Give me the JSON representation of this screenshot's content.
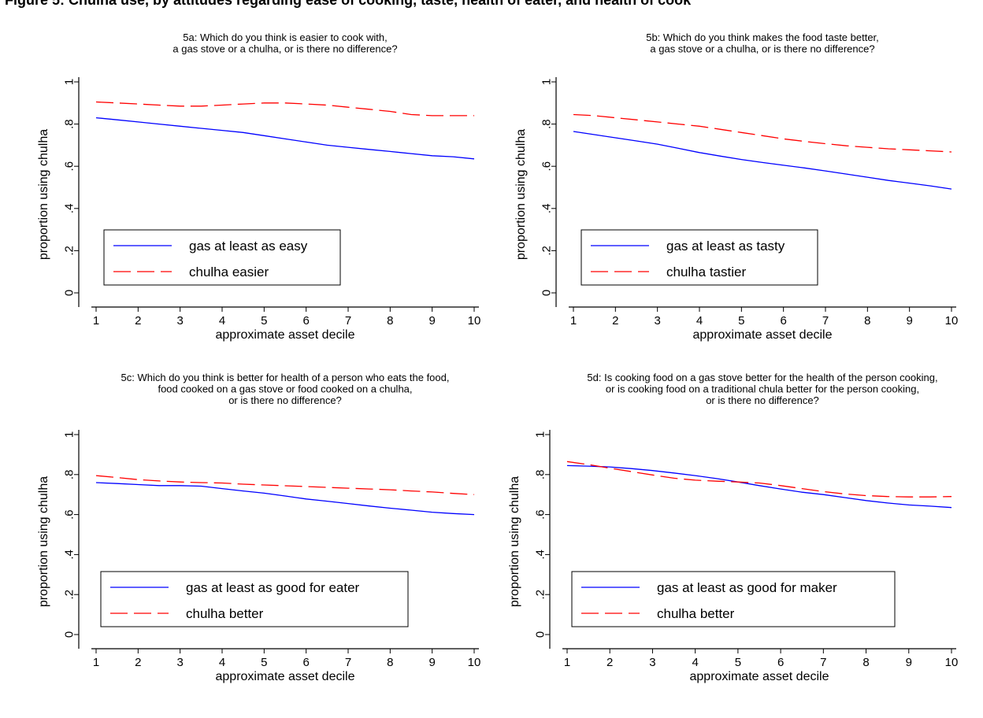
{
  "figure": {
    "caption": "Figure 5: Chulha use, by attitudes regarding ease of cooking, taste, health of eater, and health of cook"
  },
  "chart_data": [
    {
      "id": "5a",
      "type": "line",
      "title_lines": [
        "5a: Which do you think is easier to cook with,",
        "a gas stove or a chulha, or is there no difference?"
      ],
      "xlabel": "approximate asset decile",
      "ylabel": "proportion using chulha",
      "xlim": [
        1,
        10
      ],
      "ylim": [
        0,
        1
      ],
      "xticks": [
        1,
        2,
        3,
        4,
        5,
        6,
        7,
        8,
        9,
        10
      ],
      "yticks": [
        0,
        0.2,
        0.4,
        0.6,
        0.8,
        1
      ],
      "ytick_labels": [
        "0",
        ".2",
        ".4",
        ".6",
        ".8",
        "1"
      ],
      "grid": false,
      "legend_position": "bottom-left",
      "series": [
        {
          "name": "gas at least as easy",
          "color": "#0000ff",
          "dash": "solid",
          "x": [
            1,
            1.5,
            2,
            2.5,
            3,
            3.5,
            4,
            4.5,
            5,
            5.5,
            6,
            6.5,
            7,
            7.5,
            8,
            8.5,
            9,
            9.5,
            10
          ],
          "y": [
            0.83,
            0.82,
            0.81,
            0.8,
            0.79,
            0.78,
            0.77,
            0.76,
            0.745,
            0.73,
            0.715,
            0.7,
            0.69,
            0.68,
            0.67,
            0.66,
            0.65,
            0.645,
            0.635
          ]
        },
        {
          "name": "chulha easier",
          "color": "#ff0000",
          "dash": "dashed",
          "x": [
            1,
            1.5,
            2,
            2.5,
            3,
            3.5,
            4,
            4.5,
            5,
            5.5,
            6,
            6.5,
            7,
            7.5,
            8,
            8.5,
            9,
            9.5,
            10
          ],
          "y": [
            0.905,
            0.9,
            0.895,
            0.89,
            0.885,
            0.885,
            0.89,
            0.895,
            0.9,
            0.9,
            0.895,
            0.89,
            0.88,
            0.87,
            0.86,
            0.845,
            0.84,
            0.84,
            0.84
          ]
        }
      ]
    },
    {
      "id": "5b",
      "type": "line",
      "title_lines": [
        "5b: Which do you think makes the food taste better,",
        "a gas stove or a chulha, or is there no difference?"
      ],
      "xlabel": "approximate asset decile",
      "ylabel": "proportion using chulha",
      "xlim": [
        1,
        10
      ],
      "ylim": [
        0,
        1
      ],
      "xticks": [
        1,
        2,
        3,
        4,
        5,
        6,
        7,
        8,
        9,
        10
      ],
      "yticks": [
        0,
        0.2,
        0.4,
        0.6,
        0.8,
        1
      ],
      "ytick_labels": [
        "0",
        ".2",
        ".4",
        ".6",
        ".8",
        "1"
      ],
      "grid": false,
      "legend_position": "bottom-left",
      "series": [
        {
          "name": "gas at least as tasty",
          "color": "#0000ff",
          "dash": "solid",
          "x": [
            1,
            1.5,
            2,
            2.5,
            3,
            3.5,
            4,
            4.5,
            5,
            5.5,
            6,
            6.5,
            7,
            7.5,
            8,
            8.5,
            9,
            9.5,
            10
          ],
          "y": [
            0.765,
            0.75,
            0.735,
            0.72,
            0.705,
            0.685,
            0.665,
            0.648,
            0.632,
            0.618,
            0.605,
            0.592,
            0.578,
            0.563,
            0.548,
            0.533,
            0.52,
            0.507,
            0.492
          ]
        },
        {
          "name": "chulha tastier",
          "color": "#ff0000",
          "dash": "dashed",
          "x": [
            1,
            1.5,
            2,
            2.5,
            3,
            3.5,
            4,
            4.5,
            5,
            5.5,
            6,
            6.5,
            7,
            7.5,
            8,
            8.5,
            9,
            9.5,
            10
          ],
          "y": [
            0.845,
            0.84,
            0.83,
            0.82,
            0.81,
            0.8,
            0.79,
            0.775,
            0.76,
            0.745,
            0.73,
            0.718,
            0.707,
            0.697,
            0.69,
            0.683,
            0.678,
            0.673,
            0.668
          ]
        }
      ]
    },
    {
      "id": "5c",
      "type": "line",
      "title_lines": [
        "5c: Which do you think is better for health of a person who eats the food,",
        "food cooked on a gas stove or food cooked on a chulha,",
        "or is there no difference?"
      ],
      "xlabel": "approximate asset decile",
      "ylabel": "proportion using chulha",
      "xlim": [
        1,
        10
      ],
      "ylim": [
        0,
        1
      ],
      "xticks": [
        1,
        2,
        3,
        4,
        5,
        6,
        7,
        8,
        9,
        10
      ],
      "yticks": [
        0,
        0.2,
        0.4,
        0.6,
        0.8,
        1
      ],
      "ytick_labels": [
        "0",
        ".2",
        ".4",
        ".6",
        ".8",
        "1"
      ],
      "grid": false,
      "legend_position": "bottom-left",
      "series": [
        {
          "name": "gas at least as good for eater",
          "color": "#0000ff",
          "dash": "solid",
          "x": [
            1,
            1.5,
            2,
            2.5,
            3,
            3.5,
            4,
            4.5,
            5,
            5.5,
            6,
            6.5,
            7,
            7.5,
            8,
            8.5,
            9,
            9.5,
            10
          ],
          "y": [
            0.76,
            0.755,
            0.75,
            0.745,
            0.745,
            0.742,
            0.73,
            0.718,
            0.707,
            0.693,
            0.678,
            0.667,
            0.655,
            0.643,
            0.632,
            0.622,
            0.612,
            0.605,
            0.6
          ]
        },
        {
          "name": "chulha better",
          "color": "#ff0000",
          "dash": "dashed",
          "x": [
            1,
            1.5,
            2,
            2.5,
            3,
            3.5,
            4,
            4.5,
            5,
            5.5,
            6,
            6.5,
            7,
            7.5,
            8,
            8.5,
            9,
            9.5,
            10
          ],
          "y": [
            0.795,
            0.785,
            0.775,
            0.768,
            0.763,
            0.76,
            0.758,
            0.752,
            0.748,
            0.744,
            0.74,
            0.736,
            0.732,
            0.728,
            0.724,
            0.718,
            0.713,
            0.706,
            0.7
          ]
        }
      ]
    },
    {
      "id": "5d",
      "type": "line",
      "title_lines": [
        "5d: Is cooking food on a gas stove better for the health of the person cooking,",
        "or is cooking food on a traditional chula better for the person cooking,",
        "or is there no difference?"
      ],
      "xlabel": "approximate asset decile",
      "ylabel": "proportion using chulha",
      "xlim": [
        1,
        10
      ],
      "ylim": [
        0,
        1
      ],
      "xticks": [
        1,
        2,
        3,
        4,
        5,
        6,
        7,
        8,
        9,
        10
      ],
      "yticks": [
        0,
        0.2,
        0.4,
        0.6,
        0.8,
        1
      ],
      "ytick_labels": [
        "0",
        ".2",
        ".4",
        ".6",
        ".8",
        "1"
      ],
      "grid": false,
      "legend_position": "bottom-left",
      "series": [
        {
          "name": "gas at least as good for maker",
          "color": "#0000ff",
          "dash": "solid",
          "x": [
            1,
            1.5,
            2,
            2.5,
            3,
            3.5,
            4,
            4.5,
            5,
            5.5,
            6,
            6.5,
            7,
            7.5,
            8,
            8.5,
            9,
            9.5,
            10
          ],
          "y": [
            0.845,
            0.842,
            0.838,
            0.83,
            0.82,
            0.808,
            0.795,
            0.78,
            0.763,
            0.745,
            0.728,
            0.712,
            0.7,
            0.685,
            0.67,
            0.658,
            0.648,
            0.642,
            0.635
          ]
        },
        {
          "name": "chulha better",
          "color": "#ff0000",
          "dash": "dashed",
          "x": [
            1,
            1.5,
            2,
            2.5,
            3,
            3.5,
            4,
            4.5,
            5,
            5.5,
            6,
            6.5,
            7,
            7.5,
            8,
            8.5,
            9,
            9.5,
            10
          ],
          "y": [
            0.865,
            0.85,
            0.832,
            0.815,
            0.798,
            0.782,
            0.772,
            0.767,
            0.763,
            0.758,
            0.745,
            0.73,
            0.715,
            0.703,
            0.695,
            0.69,
            0.688,
            0.688,
            0.69
          ]
        }
      ]
    }
  ]
}
